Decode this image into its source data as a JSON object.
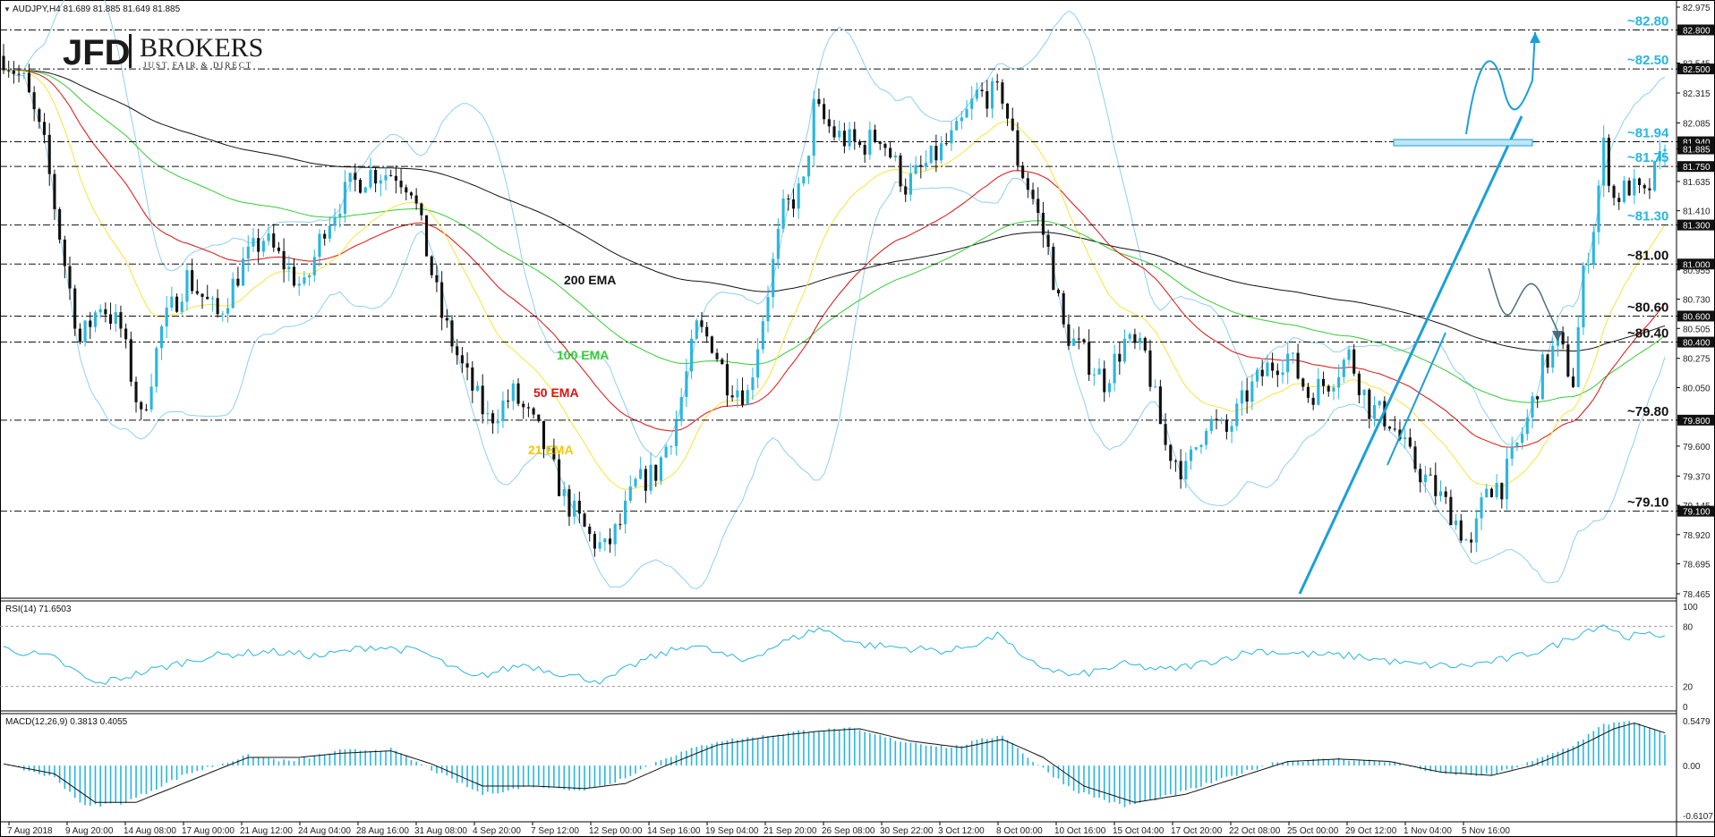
{
  "chart_data": {
    "type": "candlestick",
    "header": "AUDJPY,H4  81.689 81.885 81.649 81.885",
    "brand": {
      "logo": "JFD",
      "name": "BROKERS",
      "tagline": "JUST FAIR & DIRECT"
    },
    "colors": {
      "bull": "#29b6e0",
      "bear": "#111111",
      "bb": "#8fcff0",
      "ema21": "#f7e43a",
      "ema50": "#e01010",
      "ema100": "#33cc33",
      "ema200": "#111111",
      "level": "#29b6e0",
      "trend": "#1aa0d8"
    },
    "x_axis": {
      "labels": [
        "7 Aug 2018",
        "9 Aug 20:00",
        "14 Aug 08:00",
        "17 Aug 00:00",
        "21 Aug 12:00",
        "24 Aug 04:00",
        "28 Aug 16:00",
        "31 Aug 08:00",
        "4 Sep 20:00",
        "7 Sep 12:00",
        "12 Sep 00:00",
        "14 Sep 16:00",
        "19 Sep 04:00",
        "21 Sep 20:00",
        "26 Sep 08:00",
        "30 Sep 22:00",
        "3 Oct 12:00",
        "8 Oct 00:00",
        "10 Oct 16:00",
        "15 Oct 04:00",
        "17 Oct 20:00",
        "22 Oct 08:00",
        "25 Oct 00:00",
        "29 Oct 12:00",
        "1 Nov 04:00",
        "5 Nov 16:00"
      ]
    },
    "price_axis": {
      "ylim": [
        78.465,
        82.975
      ],
      "ticks": [
        "82.975",
        "82.800",
        "82.545",
        "82.500",
        "82.315",
        "82.085",
        "81.940",
        "81.885",
        "81.750",
        "81.635",
        "81.410",
        "81.300",
        "81.000",
        "80.955",
        "80.730",
        "80.600",
        "80.505",
        "80.400",
        "80.275",
        "80.050",
        "79.800",
        "79.600",
        "79.370",
        "79.145",
        "79.100",
        "78.920",
        "78.695",
        "78.465"
      ]
    },
    "price_path": [
      [
        0,
        82.6
      ],
      [
        4,
        82.4
      ],
      [
        8,
        81.9
      ],
      [
        12,
        81.0
      ],
      [
        15,
        80.4
      ],
      [
        19,
        80.7
      ],
      [
        23,
        80.5
      ],
      [
        27,
        79.8
      ],
      [
        31,
        80.5
      ],
      [
        36,
        80.9
      ],
      [
        42,
        80.6
      ],
      [
        47,
        81.0
      ],
      [
        51,
        81.2
      ],
      [
        55,
        81.0
      ],
      [
        59,
        80.8
      ],
      [
        63,
        81.3
      ],
      [
        68,
        81.6
      ],
      [
        72,
        81.7
      ],
      [
        77,
        81.7
      ],
      [
        80,
        81.6
      ],
      [
        83,
        81.1
      ],
      [
        86,
        80.6
      ],
      [
        90,
        80.2
      ],
      [
        95,
        79.8
      ],
      [
        100,
        80.0
      ],
      [
        105,
        79.7
      ],
      [
        110,
        79.2
      ],
      [
        115,
        78.9
      ],
      [
        118,
        78.8
      ],
      [
        121,
        79.0
      ],
      [
        124,
        79.3
      ],
      [
        128,
        79.4
      ],
      [
        132,
        79.8
      ],
      [
        136,
        80.5
      ],
      [
        139,
        80.4
      ],
      [
        142,
        80.1
      ],
      [
        146,
        80.0
      ],
      [
        149,
        80.6
      ],
      [
        153,
        81.4
      ],
      [
        157,
        81.6
      ],
      [
        159,
        82.2
      ],
      [
        163,
        82.0
      ],
      [
        168,
        81.9
      ],
      [
        172,
        82.0
      ],
      [
        177,
        81.6
      ],
      [
        182,
        81.8
      ],
      [
        187,
        82.0
      ],
      [
        191,
        82.3
      ],
      [
        196,
        82.3
      ],
      [
        199,
        81.8
      ],
      [
        202,
        81.5
      ],
      [
        205,
        81.1
      ],
      [
        208,
        80.5
      ],
      [
        212,
        80.3
      ],
      [
        216,
        80.1
      ],
      [
        220,
        80.4
      ],
      [
        224,
        80.3
      ],
      [
        228,
        79.6
      ],
      [
        232,
        79.4
      ],
      [
        236,
        79.8
      ],
      [
        240,
        79.7
      ],
      [
        244,
        80.0
      ],
      [
        248,
        80.2
      ],
      [
        252,
        80.3
      ],
      [
        256,
        80.0
      ],
      [
        260,
        80.1
      ],
      [
        264,
        80.3
      ],
      [
        268,
        79.9
      ],
      [
        272,
        79.8
      ],
      [
        276,
        79.5
      ],
      [
        280,
        79.3
      ],
      [
        284,
        79.1
      ],
      [
        288,
        78.8
      ],
      [
        291,
        79.3
      ],
      [
        294,
        79.3
      ],
      [
        296,
        79.5
      ],
      [
        299,
        79.8
      ],
      [
        302,
        80.2
      ],
      [
        305,
        80.4
      ],
      [
        308,
        80.1
      ],
      [
        310,
        80.9
      ],
      [
        312,
        81.3
      ],
      [
        314,
        81.9
      ],
      [
        316,
        81.5
      ],
      [
        319,
        81.6
      ],
      [
        322,
        81.5
      ],
      [
        326,
        81.885
      ]
    ],
    "levels": [
      {
        "label": "~82.80",
        "value": 82.8
      },
      {
        "label": "~82.50",
        "value": 82.5
      },
      {
        "label": "~81.94",
        "value": 81.94
      },
      {
        "label": "~81.75",
        "value": 81.75
      },
      {
        "label": "~81.30",
        "value": 81.3
      },
      {
        "label": "~81.00",
        "value": 81.0
      },
      {
        "label": "~80.60",
        "value": 80.6
      },
      {
        "label": "~80.40",
        "value": 80.4
      },
      {
        "label": "~79.80",
        "value": 79.8
      },
      {
        "label": "~79.10",
        "value": 79.1
      }
    ],
    "level_tags": [
      "82.800",
      "82.500",
      "81.940",
      "81.885",
      "81.750",
      "81.300",
      "81.000",
      "80.600",
      "80.400",
      "79.800",
      "79.100"
    ],
    "ema_labels": [
      {
        "text": "200 EMA",
        "color": "#111111"
      },
      {
        "text": "100 EMA",
        "color": "#33cc33"
      },
      {
        "text": "50 EMA",
        "color": "#e01010"
      },
      {
        "text": "21 EMA",
        "color": "#f7c700"
      }
    ],
    "rsi": {
      "title": "RSI(14) 71.6503",
      "ylim": [
        0,
        100
      ],
      "ticks": [
        "100",
        "80",
        "20",
        "0"
      ],
      "levels": [
        80,
        20
      ],
      "path": [
        [
          0,
          58
        ],
        [
          10,
          48
        ],
        [
          18,
          22
        ],
        [
          28,
          35
        ],
        [
          40,
          50
        ],
        [
          52,
          55
        ],
        [
          62,
          50
        ],
        [
          72,
          60
        ],
        [
          82,
          55
        ],
        [
          92,
          28
        ],
        [
          102,
          42
        ],
        [
          112,
          30
        ],
        [
          118,
          25
        ],
        [
          125,
          45
        ],
        [
          135,
          62
        ],
        [
          145,
          45
        ],
        [
          152,
          62
        ],
        [
          160,
          78
        ],
        [
          168,
          62
        ],
        [
          178,
          58
        ],
        [
          186,
          55
        ],
        [
          196,
          72
        ],
        [
          200,
          46
        ],
        [
          210,
          30
        ],
        [
          220,
          42
        ],
        [
          228,
          36
        ],
        [
          236,
          44
        ],
        [
          246,
          56
        ],
        [
          256,
          52
        ],
        [
          266,
          50
        ],
        [
          276,
          42
        ],
        [
          286,
          40
        ],
        [
          296,
          48
        ],
        [
          304,
          60
        ],
        [
          310,
          75
        ],
        [
          314,
          82
        ],
        [
          318,
          70
        ],
        [
          326,
          71.65
        ]
      ]
    },
    "macd": {
      "title": "MACD(12,26,9) 0.3813 0.4055",
      "ylim": [
        -0.6107,
        0.5479
      ],
      "ticks": [
        "0.5479",
        "0.00",
        "-0.6107"
      ],
      "hist": [
        [
          0,
          0.02
        ],
        [
          10,
          -0.15
        ],
        [
          16,
          -0.5
        ],
        [
          24,
          -0.45
        ],
        [
          36,
          -0.1
        ],
        [
          48,
          0.12
        ],
        [
          56,
          0.05
        ],
        [
          66,
          0.18
        ],
        [
          76,
          0.2
        ],
        [
          84,
          -0.05
        ],
        [
          94,
          -0.35
        ],
        [
          104,
          -0.25
        ],
        [
          114,
          -0.3
        ],
        [
          120,
          -0.2
        ],
        [
          130,
          0.1
        ],
        [
          140,
          0.3
        ],
        [
          148,
          0.35
        ],
        [
          156,
          0.42
        ],
        [
          166,
          0.45
        ],
        [
          176,
          0.3
        ],
        [
          186,
          0.22
        ],
        [
          196,
          0.38
        ],
        [
          202,
          0.05
        ],
        [
          210,
          -0.3
        ],
        [
          220,
          -0.5
        ],
        [
          230,
          -0.35
        ],
        [
          240,
          -0.15
        ],
        [
          250,
          0.05
        ],
        [
          262,
          0.08
        ],
        [
          272,
          0.05
        ],
        [
          282,
          -0.1
        ],
        [
          292,
          -0.12
        ],
        [
          300,
          0.05
        ],
        [
          308,
          0.25
        ],
        [
          314,
          0.5
        ],
        [
          318,
          0.55
        ],
        [
          322,
          0.48
        ],
        [
          326,
          0.38
        ]
      ],
      "signal": [
        [
          0,
          0.02
        ],
        [
          10,
          -0.1
        ],
        [
          18,
          -0.45
        ],
        [
          26,
          -0.45
        ],
        [
          36,
          -0.2
        ],
        [
          48,
          0.1
        ],
        [
          58,
          0.1
        ],
        [
          66,
          0.15
        ],
        [
          76,
          0.18
        ],
        [
          84,
          0.02
        ],
        [
          94,
          -0.25
        ],
        [
          104,
          -0.25
        ],
        [
          114,
          -0.28
        ],
        [
          122,
          -0.22
        ],
        [
          130,
          0.0
        ],
        [
          140,
          0.25
        ],
        [
          150,
          0.35
        ],
        [
          160,
          0.42
        ],
        [
          168,
          0.45
        ],
        [
          178,
          0.3
        ],
        [
          188,
          0.22
        ],
        [
          196,
          0.32
        ],
        [
          204,
          0.1
        ],
        [
          212,
          -0.25
        ],
        [
          222,
          -0.45
        ],
        [
          232,
          -0.35
        ],
        [
          242,
          -0.15
        ],
        [
          252,
          0.05
        ],
        [
          262,
          0.08
        ],
        [
          272,
          0.05
        ],
        [
          282,
          -0.08
        ],
        [
          292,
          -0.12
        ],
        [
          300,
          0.0
        ],
        [
          308,
          0.2
        ],
        [
          316,
          0.45
        ],
        [
          320,
          0.52
        ],
        [
          326,
          0.4
        ]
      ]
    }
  }
}
